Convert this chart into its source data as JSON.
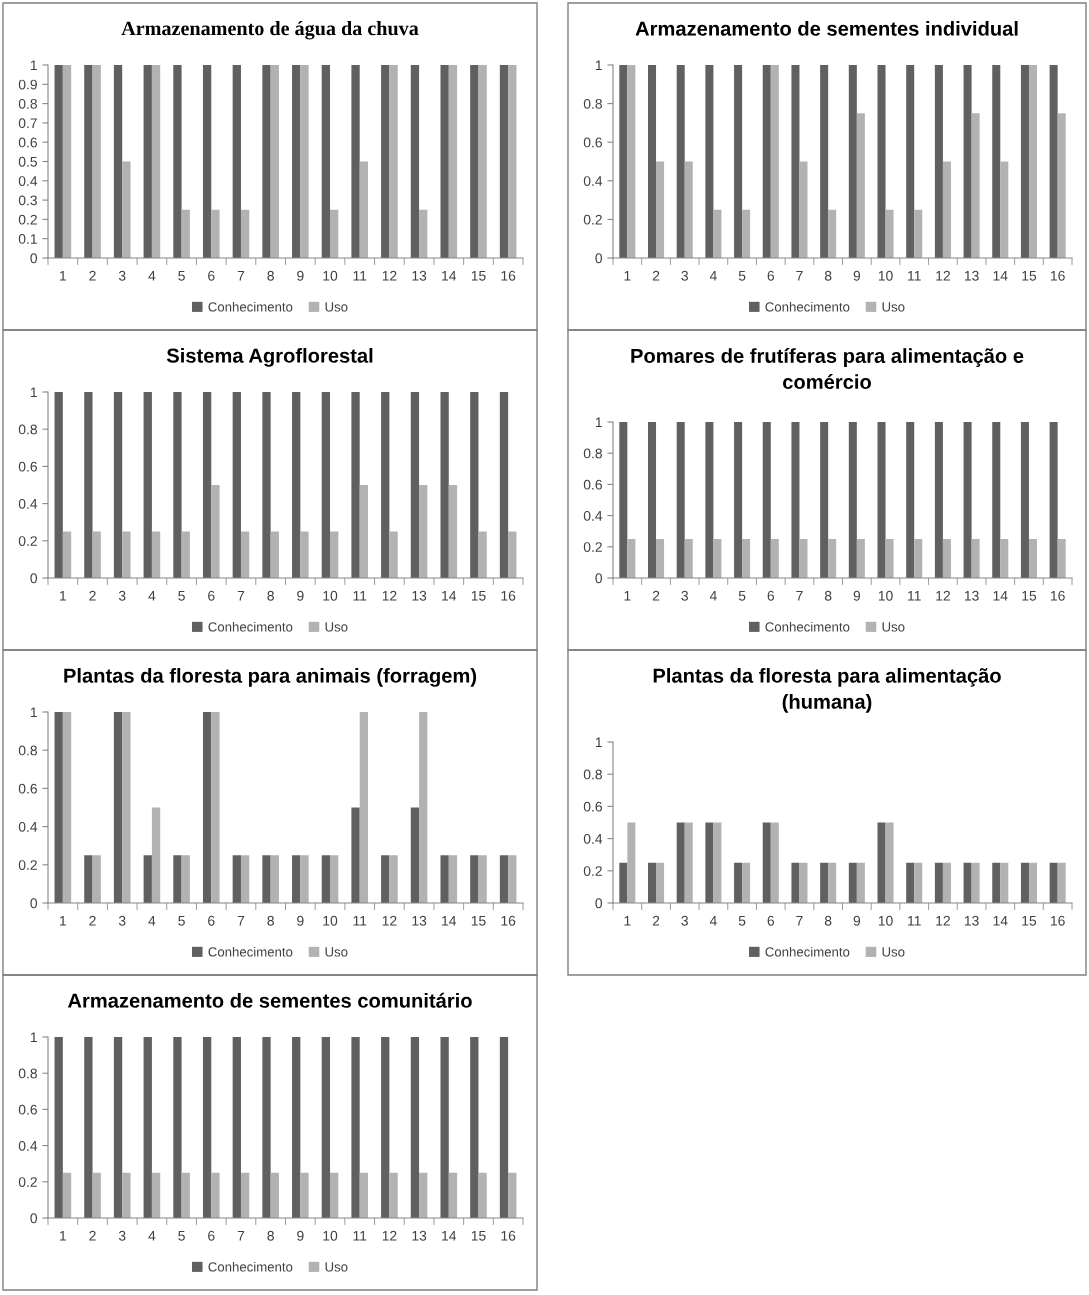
{
  "chart_data": [
    {
      "type": "bar",
      "title": "Armazenamento de água da chuva",
      "categories": [
        "1",
        "2",
        "3",
        "4",
        "5",
        "6",
        "7",
        "8",
        "9",
        "10",
        "11",
        "12",
        "13",
        "14",
        "15",
        "16"
      ],
      "ylim": [
        0,
        1
      ],
      "yticks": [
        0,
        0.1,
        0.2,
        0.3,
        0.4,
        0.5,
        0.6,
        0.7,
        0.8,
        0.9,
        1
      ],
      "grid": false,
      "legend": "bottom",
      "series": [
        {
          "name": "Conhecimento",
          "color": "#606060",
          "values": [
            1,
            1,
            1,
            1,
            1,
            1,
            1,
            1,
            1,
            1,
            1,
            1,
            1,
            1,
            1,
            1
          ]
        },
        {
          "name": "Uso",
          "color": "#b2b2b2",
          "values": [
            1,
            1,
            0.5,
            1,
            0.25,
            0.25,
            0.25,
            1,
            1,
            0.25,
            0.5,
            1,
            0.25,
            1,
            1,
            1
          ]
        }
      ]
    },
    {
      "type": "bar",
      "title": "Armazenamento de sementes individual",
      "categories": [
        "1",
        "2",
        "3",
        "4",
        "5",
        "6",
        "7",
        "8",
        "9",
        "10",
        "11",
        "12",
        "13",
        "14",
        "15",
        "16"
      ],
      "ylim": [
        0,
        1
      ],
      "yticks": [
        0,
        0.2,
        0.4,
        0.6,
        0.8,
        1
      ],
      "grid": false,
      "legend": "bottom",
      "series": [
        {
          "name": "Conhecimento",
          "color": "#606060",
          "values": [
            1,
            1,
            1,
            1,
            1,
            1,
            1,
            1,
            1,
            1,
            1,
            1,
            1,
            1,
            1,
            1
          ]
        },
        {
          "name": "Uso",
          "color": "#b2b2b2",
          "values": [
            1,
            0.5,
            0.5,
            0.25,
            0.25,
            1,
            0.5,
            0.25,
            0.75,
            0.25,
            0.25,
            0.5,
            0.75,
            0.5,
            1,
            0.75
          ]
        }
      ]
    },
    {
      "type": "bar",
      "title": "Sistema Agroflorestal",
      "categories": [
        "1",
        "2",
        "3",
        "4",
        "5",
        "6",
        "7",
        "8",
        "9",
        "10",
        "11",
        "12",
        "13",
        "14",
        "15",
        "16"
      ],
      "ylim": [
        0,
        1
      ],
      "yticks": [
        0,
        0.2,
        0.4,
        0.6,
        0.8,
        1
      ],
      "grid": false,
      "legend": "bottom",
      "series": [
        {
          "name": "Conhecimento",
          "color": "#606060",
          "values": [
            1,
            1,
            1,
            1,
            1,
            1,
            1,
            1,
            1,
            1,
            1,
            1,
            1,
            1,
            1,
            1
          ]
        },
        {
          "name": "Uso",
          "color": "#b2b2b2",
          "values": [
            0.25,
            0.25,
            0.25,
            0.25,
            0.25,
            0.5,
            0.25,
            0.25,
            0.25,
            0.25,
            0.5,
            0.25,
            0.5,
            0.5,
            0.25,
            0.25
          ]
        }
      ]
    },
    {
      "type": "bar",
      "title": "Pomares de frutíferas para alimentação e comércio",
      "categories": [
        "1",
        "2",
        "3",
        "4",
        "5",
        "6",
        "7",
        "8",
        "9",
        "10",
        "11",
        "12",
        "13",
        "14",
        "15",
        "16"
      ],
      "ylim": [
        0,
        1
      ],
      "yticks": [
        0,
        0.2,
        0.4,
        0.6,
        0.8,
        1
      ],
      "grid": false,
      "legend": "bottom",
      "series": [
        {
          "name": "Conhecimento",
          "color": "#606060",
          "values": [
            1,
            1,
            1,
            1,
            1,
            1,
            1,
            1,
            1,
            1,
            1,
            1,
            1,
            1,
            1,
            1
          ]
        },
        {
          "name": "Uso",
          "color": "#b2b2b2",
          "values": [
            0.25,
            0.25,
            0.25,
            0.25,
            0.25,
            0.25,
            0.25,
            0.25,
            0.25,
            0.25,
            0.25,
            0.25,
            0.25,
            0.25,
            0.25,
            0.25
          ]
        }
      ]
    },
    {
      "type": "bar",
      "title": "Plantas da floresta para animais (forragem)",
      "categories": [
        "1",
        "2",
        "3",
        "4",
        "5",
        "6",
        "7",
        "8",
        "9",
        "10",
        "11",
        "12",
        "13",
        "14",
        "15",
        "16"
      ],
      "ylim": [
        0,
        1
      ],
      "yticks": [
        0,
        0.2,
        0.4,
        0.6,
        0.8,
        1
      ],
      "grid": false,
      "legend": "bottom",
      "series": [
        {
          "name": "Conhecimento",
          "color": "#606060",
          "values": [
            1,
            0.25,
            1,
            0.25,
            0.25,
            1,
            0.25,
            0.25,
            0.25,
            0.25,
            0.5,
            0.25,
            0.5,
            0.25,
            0.25,
            0.25
          ]
        },
        {
          "name": "Uso",
          "color": "#b2b2b2",
          "values": [
            1,
            0.25,
            1,
            0.5,
            0.25,
            1,
            0.25,
            0.25,
            0.25,
            0.25,
            1,
            0.25,
            1,
            0.25,
            0.25,
            0.25
          ]
        }
      ]
    },
    {
      "type": "bar",
      "title": "Plantas da floresta para alimentação (humana)",
      "categories": [
        "1",
        "2",
        "3",
        "4",
        "5",
        "6",
        "7",
        "8",
        "9",
        "10",
        "11",
        "12",
        "13",
        "14",
        "15",
        "16"
      ],
      "ylim": [
        0,
        1
      ],
      "yticks": [
        0,
        0.2,
        0.4,
        0.6,
        0.8,
        1
      ],
      "grid": false,
      "legend": "bottom",
      "series": [
        {
          "name": "Conhecimento",
          "color": "#606060",
          "values": [
            0.25,
            0.25,
            0.5,
            0.5,
            0.25,
            0.5,
            0.25,
            0.25,
            0.25,
            0.5,
            0.25,
            0.25,
            0.25,
            0.25,
            0.25,
            0.25
          ]
        },
        {
          "name": "Uso",
          "color": "#b2b2b2",
          "values": [
            0.5,
            0.25,
            0.5,
            0.5,
            0.25,
            0.5,
            0.25,
            0.25,
            0.25,
            0.5,
            0.25,
            0.25,
            0.25,
            0.25,
            0.25,
            0.25
          ]
        }
      ]
    },
    {
      "type": "bar",
      "title": "Armazenamento de sementes comunitário",
      "categories": [
        "1",
        "2",
        "3",
        "4",
        "5",
        "6",
        "7",
        "8",
        "9",
        "10",
        "11",
        "12",
        "13",
        "14",
        "15",
        "16"
      ],
      "ylim": [
        0,
        1
      ],
      "yticks": [
        0,
        0.2,
        0.4,
        0.6,
        0.8,
        1
      ],
      "grid": false,
      "legend": "bottom",
      "series": [
        {
          "name": "Conhecimento",
          "color": "#606060",
          "values": [
            1,
            1,
            1,
            1,
            1,
            1,
            1,
            1,
            1,
            1,
            1,
            1,
            1,
            1,
            1,
            1
          ]
        },
        {
          "name": "Uso",
          "color": "#b2b2b2",
          "values": [
            0.25,
            0.25,
            0.25,
            0.25,
            0.25,
            0.25,
            0.25,
            0.25,
            0.25,
            0.25,
            0.25,
            0.25,
            0.25,
            0.25,
            0.25,
            0.25
          ]
        }
      ]
    }
  ]
}
